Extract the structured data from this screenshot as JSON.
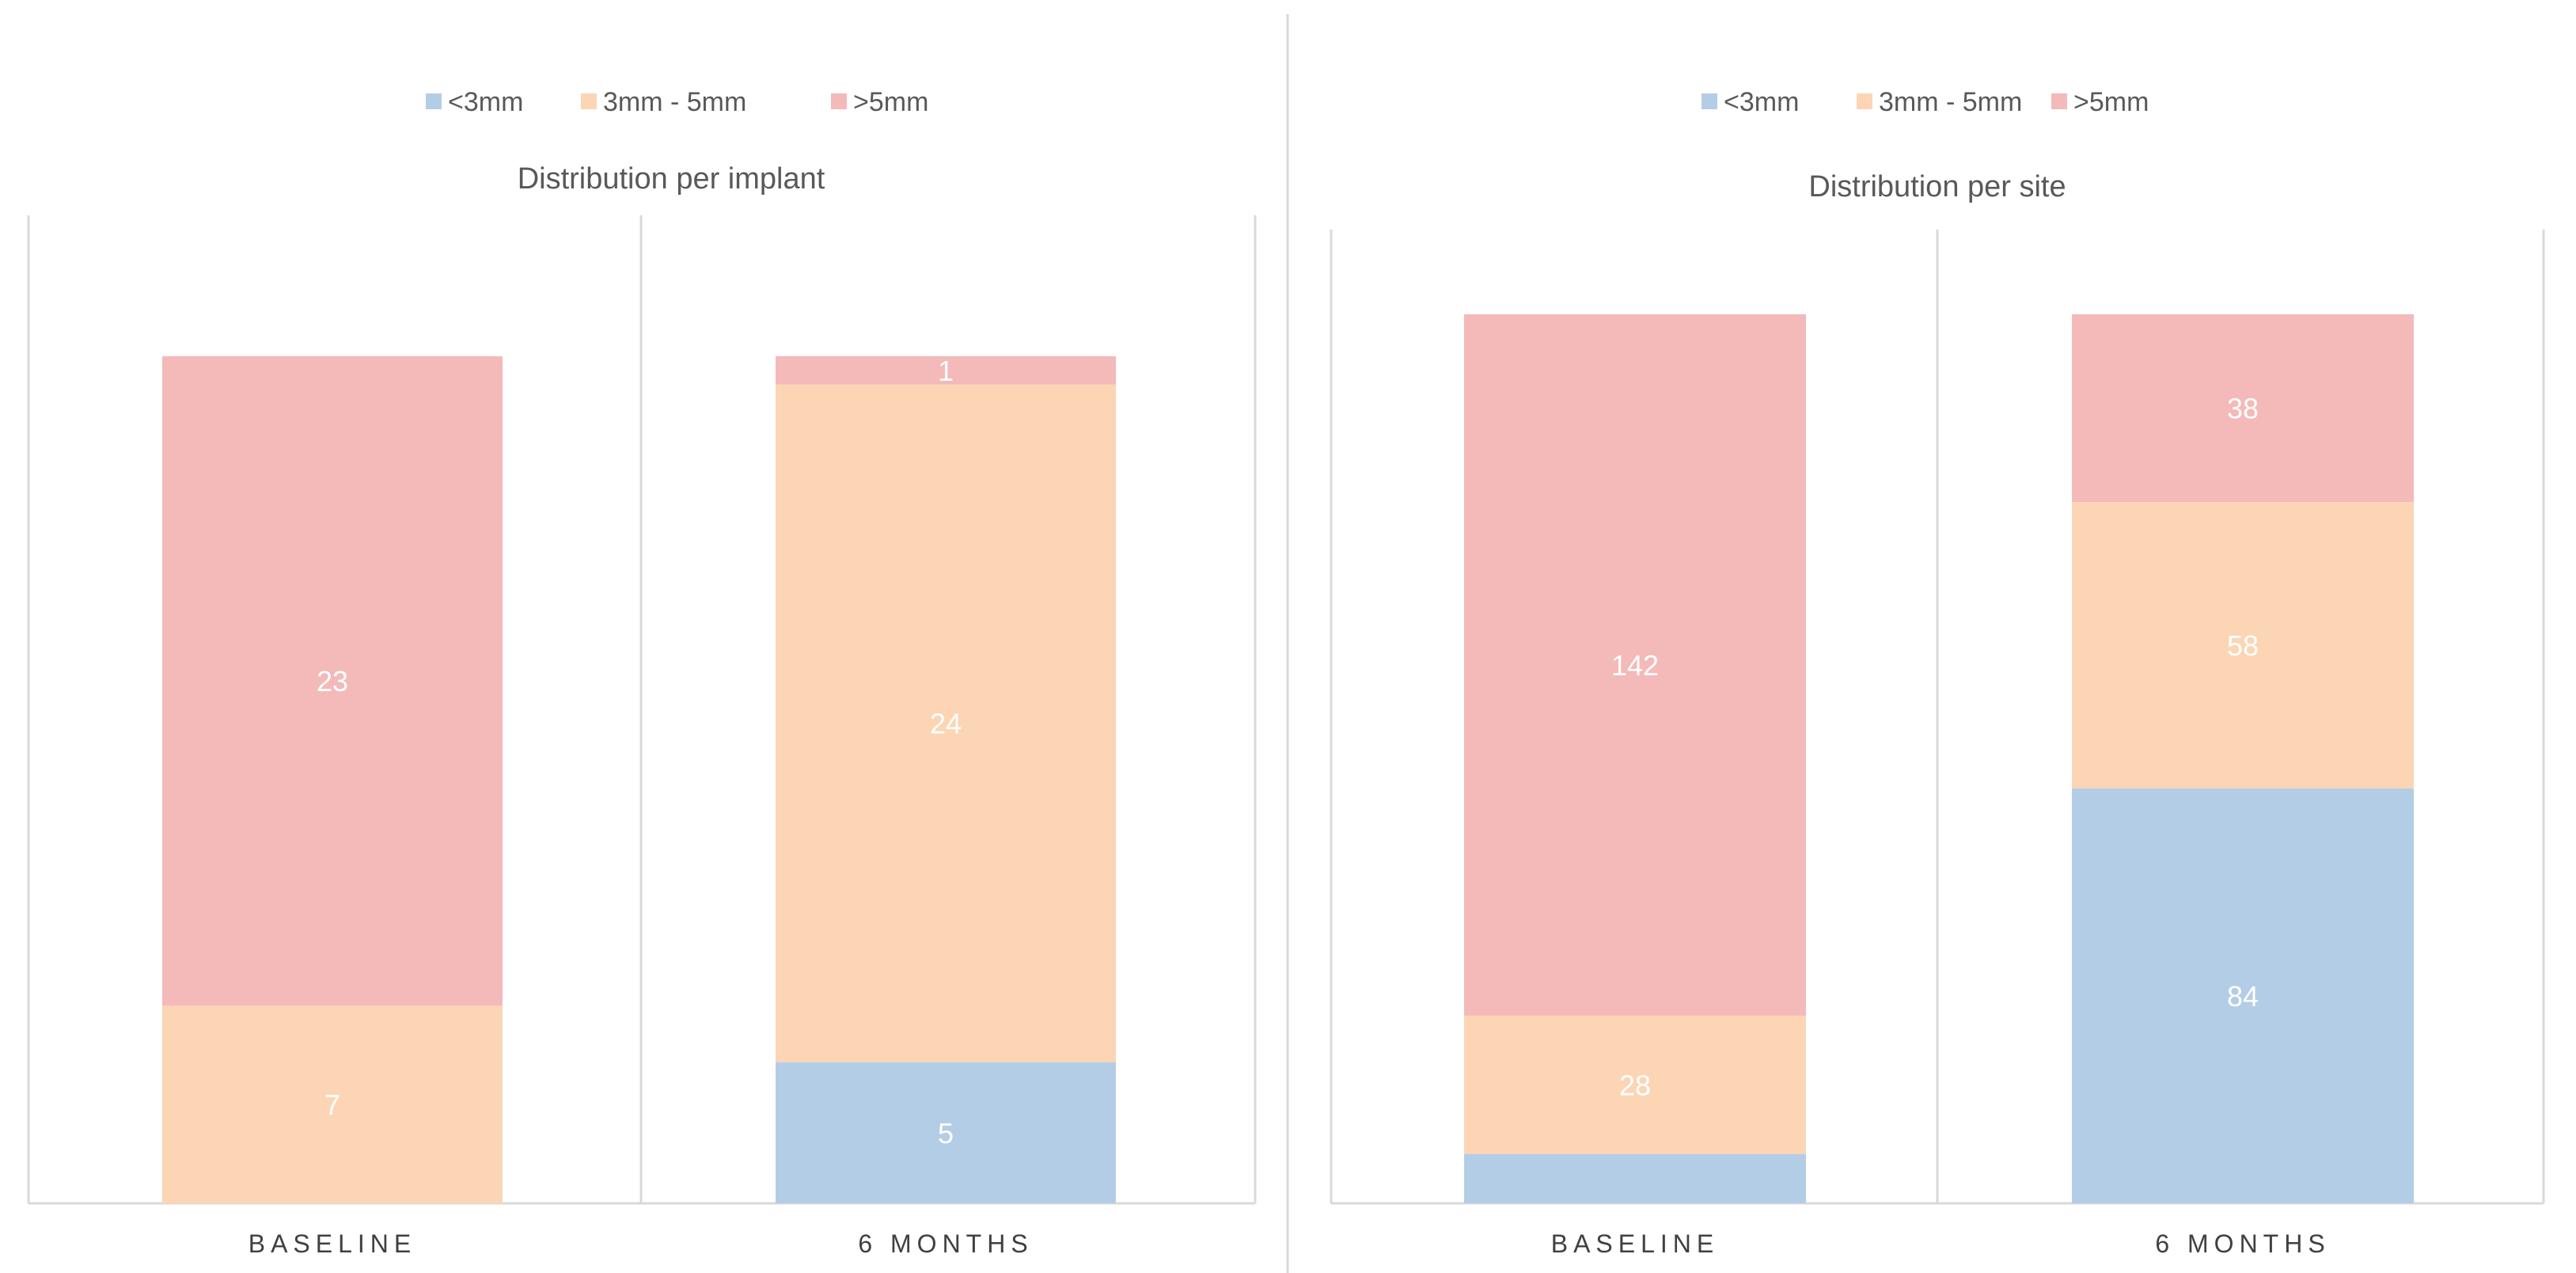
{
  "colors": {
    "lt3": "#b4cde6",
    "mid": "#fcd5b5",
    "gt5": "#f4b9b9"
  },
  "chart_data": [
    {
      "type": "bar",
      "stacked": true,
      "title": "Distribution per implant",
      "legend": [
        "<3mm",
        "3mm - 5mm",
        ">5mm"
      ],
      "legend_position": "top",
      "categories": [
        "BASELINE",
        "6 MONTHS"
      ],
      "series": [
        {
          "name": "<3mm",
          "values": [
            0,
            5
          ],
          "labels": [
            "",
            "5"
          ]
        },
        {
          "name": "3mm - 5mm",
          "values": [
            7,
            24
          ],
          "labels": [
            "7",
            "24"
          ]
        },
        {
          "name": ">5mm",
          "values": [
            23,
            1
          ],
          "labels": [
            "23",
            "1"
          ]
        }
      ],
      "ylim": [
        0,
        30
      ]
    },
    {
      "type": "bar",
      "stacked": true,
      "title": "Distribution per site",
      "legend": [
        "<3mm",
        "3mm - 5mm",
        ">5mm"
      ],
      "legend_position": "top",
      "categories": [
        "BASELINE",
        "6 MONTHS"
      ],
      "series": [
        {
          "name": "<3mm",
          "values": [
            10,
            84
          ],
          "labels": [
            "",
            "84"
          ]
        },
        {
          "name": "3mm - 5mm",
          "values": [
            28,
            58
          ],
          "labels": [
            "28",
            "58"
          ]
        },
        {
          "name": ">5mm",
          "values": [
            142,
            38
          ],
          "labels": [
            "142",
            "38"
          ]
        }
      ],
      "ylim": [
        0,
        180
      ]
    }
  ]
}
